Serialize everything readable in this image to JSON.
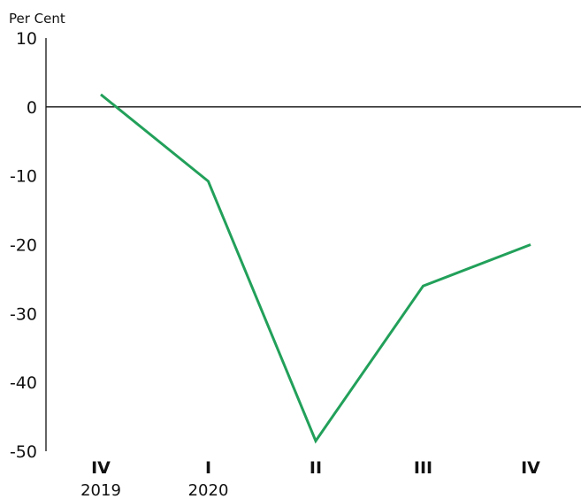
{
  "chart_data": {
    "type": "line",
    "ylabel": "Per Cent",
    "ylim": [
      -50,
      10
    ],
    "yticks": [
      "10",
      "0",
      "-10",
      "-20",
      "-30",
      "-40",
      "-50"
    ],
    "ytick_values": [
      10,
      0,
      -10,
      -20,
      -30,
      -40,
      -50
    ],
    "categories": [
      "IV",
      "I",
      "II",
      "III",
      "IV"
    ],
    "year_labels": [
      "2019",
      "2020",
      "",
      "",
      ""
    ],
    "series": [
      {
        "color": "#22a05a",
        "values": [
          1.8,
          -10.8,
          -48.5,
          -26,
          -20
        ]
      }
    ],
    "grid": false,
    "zero_line": true
  }
}
